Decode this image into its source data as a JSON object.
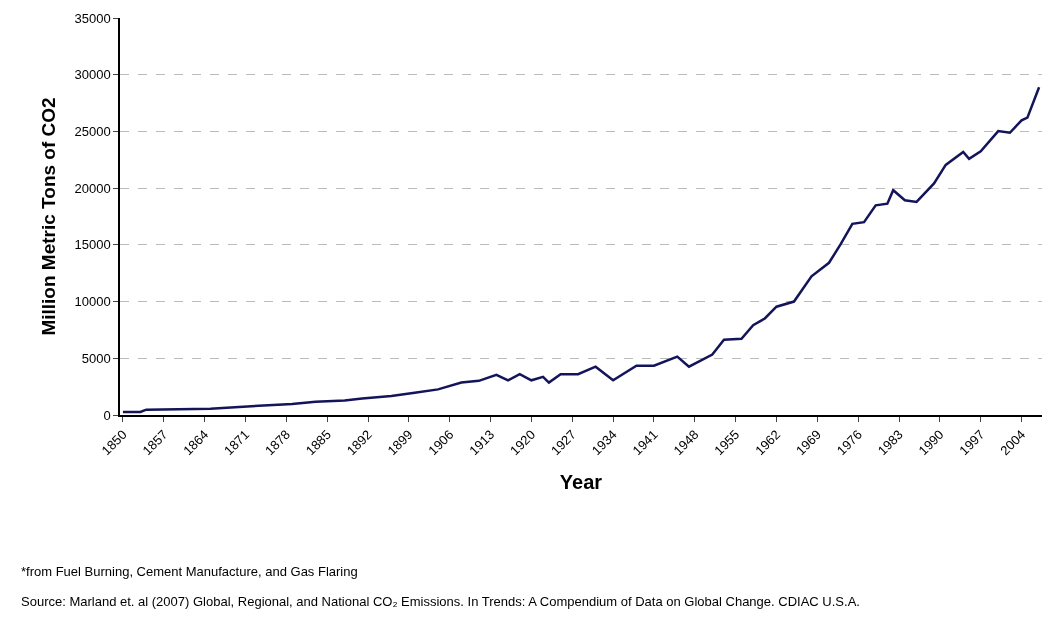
{
  "chart_data": {
    "type": "line",
    "xlabel": "Year",
    "ylabel": "Million Metric Tons of CO2",
    "x": [
      1850,
      1853,
      1854,
      1865,
      1872,
      1879,
      1883,
      1888,
      1891,
      1896,
      1900,
      1904,
      1908,
      1911,
      1914,
      1916,
      1918,
      1920,
      1922,
      1923,
      1925,
      1928,
      1931,
      1934,
      1938,
      1941,
      1945,
      1947,
      1951,
      1953,
      1956,
      1958,
      1960,
      1962,
      1965,
      1968,
      1971,
      1973,
      1975,
      1977,
      1979,
      1981,
      1982,
      1984,
      1986,
      1989,
      1991,
      1994,
      1995,
      1997,
      2000,
      2002,
      2004,
      2005,
      2007
    ],
    "series": [
      {
        "color": "#14145a",
        "values": [
          270,
          270,
          470,
          560,
          770,
          980,
          1160,
          1280,
          1460,
          1670,
          1960,
          2260,
          2860,
          3010,
          3540,
          3060,
          3600,
          3060,
          3360,
          2860,
          3600,
          3600,
          4260,
          3060,
          4345,
          4345,
          5150,
          4260,
          5330,
          6630,
          6720,
          7920,
          8510,
          9550,
          10000,
          12230,
          13420,
          15060,
          16850,
          17000,
          18480,
          18630,
          19820,
          18930,
          18780,
          20420,
          22050,
          23190,
          22590,
          23240,
          25030,
          24880,
          25980,
          26220,
          28900
        ]
      }
    ],
    "xlim": [
      1849.5,
      2007.5
    ],
    "xticks": [
      1850,
      1857,
      1864,
      1871,
      1878,
      1885,
      1892,
      1899,
      1906,
      1913,
      1920,
      1927,
      1934,
      1941,
      1948,
      1955,
      1962,
      1969,
      1976,
      1983,
      1990,
      1997,
      2004
    ],
    "ylim": [
      0,
      35000
    ],
    "yticks": [
      0,
      5000,
      10000,
      15000,
      20000,
      25000,
      30000,
      35000
    ],
    "grid": "y",
    "line_style": "solid",
    "marker": "none",
    "annotations": [
      "*from Fuel Burning, Cement Manufacture, and Gas Flaring",
      "Source: Marland et. al (2007) Global, Regional, and National CO₂ Emissions. In Trends: A Compendium of Data on Global Change. CDIAC U.S.A."
    ]
  }
}
